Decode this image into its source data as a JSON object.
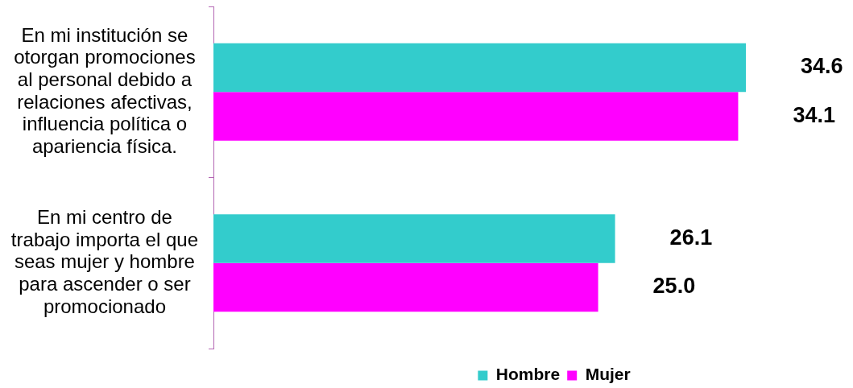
{
  "chart_data": {
    "type": "bar",
    "orientation": "horizontal",
    "categories": [
      "En mi institución se otorgan promociones al personal debido a relaciones afectivas, influencia política o apariencia física.",
      "En mi centro de trabajo importa el que seas mujer y hombre para ascender o ser promocionado"
    ],
    "series": [
      {
        "name": "Hombre",
        "color": "#33cccc",
        "values": [
          34.6,
          26.1
        ],
        "value_labels": [
          "34.6",
          "26.1"
        ]
      },
      {
        "name": "Mujer",
        "color": "#ff00ff",
        "values": [
          34.1,
          25.0
        ],
        "value_labels": [
          "34.1",
          "25.0"
        ]
      }
    ],
    "legend": "bottom"
  }
}
